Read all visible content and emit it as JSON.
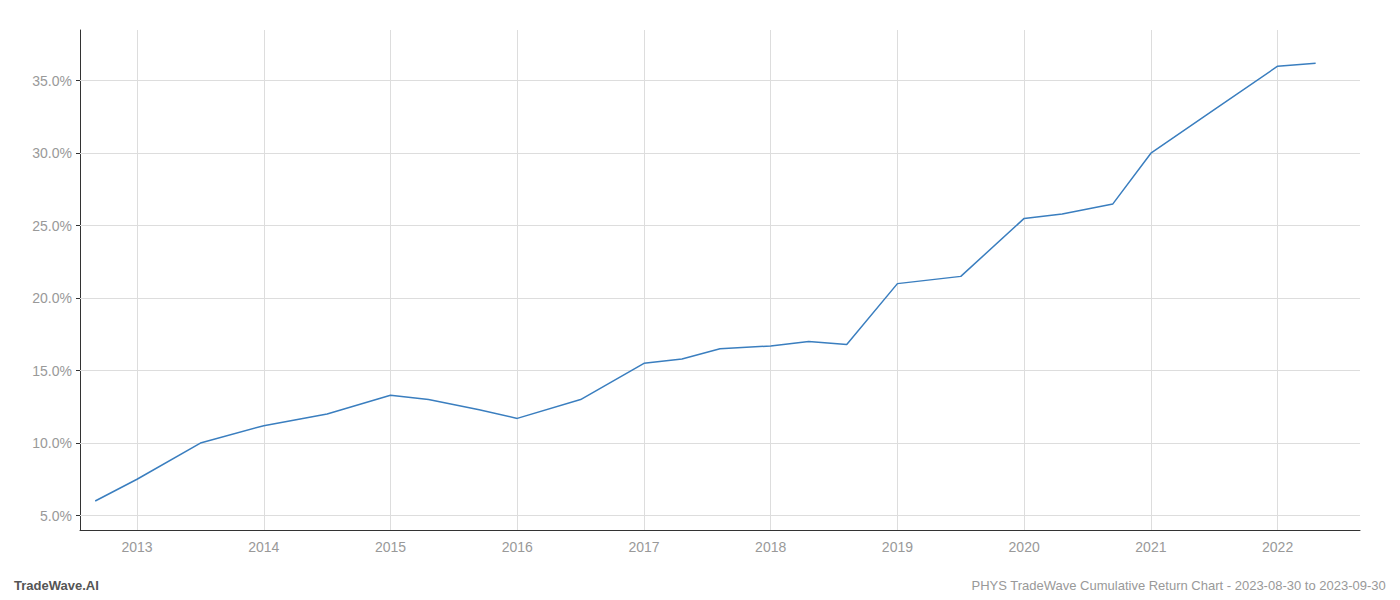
{
  "chart_data": {
    "type": "line",
    "x": [
      2012.67,
      2013.0,
      2013.5,
      2014.0,
      2014.5,
      2015.0,
      2015.3,
      2015.7,
      2016.0,
      2016.5,
      2017.0,
      2017.3,
      2017.6,
      2018.0,
      2018.3,
      2018.6,
      2019.0,
      2019.5,
      2020.0,
      2020.3,
      2020.7,
      2021.0,
      2021.5,
      2022.0,
      2022.3
    ],
    "values": [
      6.0,
      7.5,
      10.0,
      11.2,
      12.0,
      13.3,
      13.0,
      12.3,
      11.7,
      13.0,
      15.5,
      15.8,
      16.5,
      16.7,
      17.0,
      16.8,
      21.0,
      21.5,
      25.5,
      25.8,
      26.5,
      30.0,
      33.0,
      36.0,
      36.2
    ],
    "color": "#3a7ebf",
    "xlim": [
      2012.55,
      2022.65
    ],
    "ylim": [
      4.0,
      38.5
    ],
    "xticks": [
      2013,
      2014,
      2015,
      2016,
      2017,
      2018,
      2019,
      2020,
      2021,
      2022
    ],
    "yticks": [
      {
        "value": 5.0,
        "label": "5.0%"
      },
      {
        "value": 10.0,
        "label": "10.0%"
      },
      {
        "value": 15.0,
        "label": "15.0%"
      },
      {
        "value": 20.0,
        "label": "20.0%"
      },
      {
        "value": 25.0,
        "label": "25.0%"
      },
      {
        "value": 30.0,
        "label": "30.0%"
      },
      {
        "value": 35.0,
        "label": "35.0%"
      }
    ],
    "grid": true,
    "annotations": [
      "TradeWave.AI",
      "PHYS TradeWave Cumulative Return Chart - 2023-08-30 to 2023-09-30"
    ]
  }
}
